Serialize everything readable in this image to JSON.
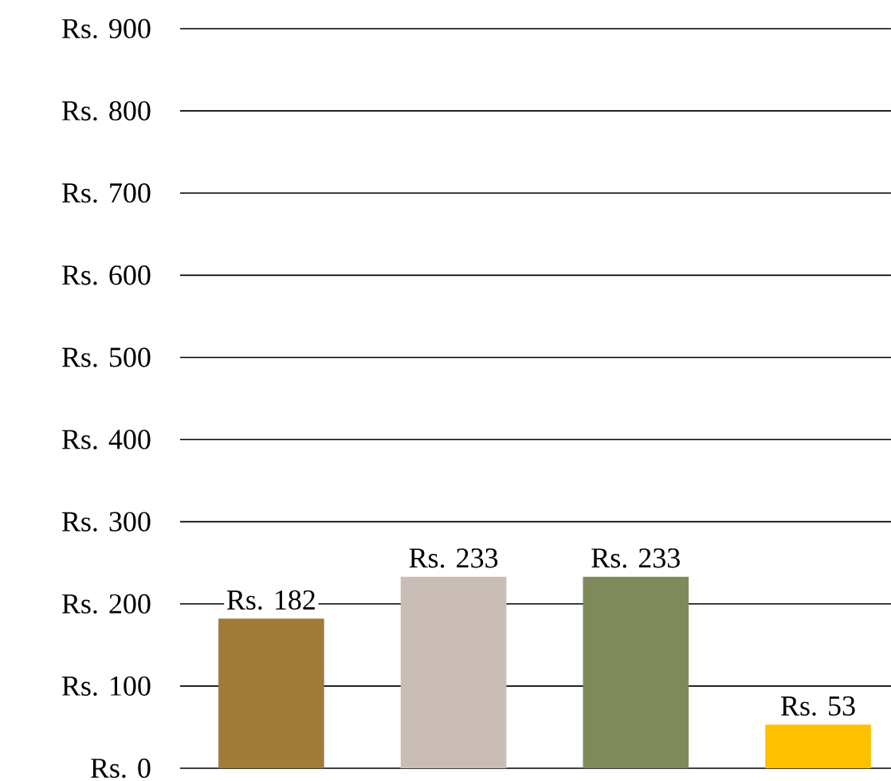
{
  "chart_data": {
    "type": "bar",
    "categories": [
      null,
      null,
      null,
      null
    ],
    "values": [
      182,
      233,
      233,
      53
    ],
    "colors": [
      "#a07c3a",
      "#c9bdb6",
      "#7f8a5a",
      "#ffc000"
    ],
    "value_labels": [
      "Rs. 182",
      "Rs. 233",
      "Rs. 233",
      "Rs. 53"
    ],
    "ylim": [
      0,
      900
    ],
    "yticks": [
      {
        "value": 0,
        "label": "Rs. 0"
      },
      {
        "value": 100,
        "label": "Rs. 100"
      },
      {
        "value": 200,
        "label": "Rs. 200"
      },
      {
        "value": 300,
        "label": "Rs. 300"
      },
      {
        "value": 400,
        "label": "Rs. 400"
      },
      {
        "value": 500,
        "label": "Rs. 500"
      },
      {
        "value": 600,
        "label": "Rs. 600"
      },
      {
        "value": 700,
        "label": "Rs. 700"
      },
      {
        "value": 800,
        "label": "Rs. 800"
      },
      {
        "value": 900,
        "label": "Rs. 900"
      }
    ],
    "grid": "y"
  }
}
